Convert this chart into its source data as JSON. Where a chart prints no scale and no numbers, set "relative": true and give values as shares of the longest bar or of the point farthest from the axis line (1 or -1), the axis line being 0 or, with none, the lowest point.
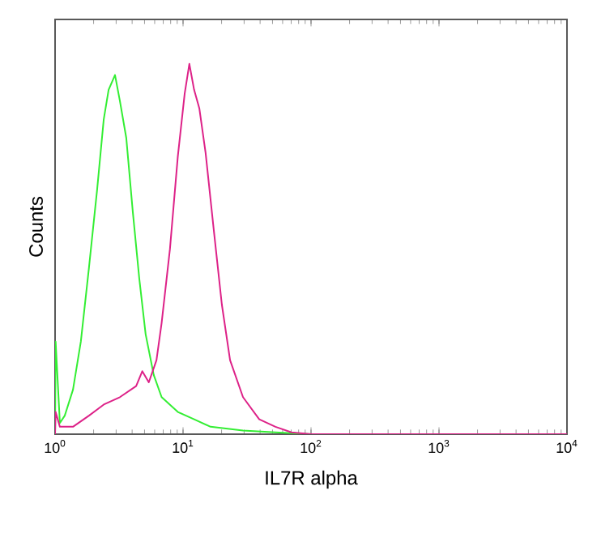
{
  "chart_data": {
    "type": "line",
    "xlabel": "IL7R alpha",
    "ylabel": "Counts",
    "log": "x",
    "relative": true,
    "xlim": [
      1,
      10000
    ],
    "xticks": [
      {
        "value": 1,
        "label": "10$^{0}$"
      },
      {
        "value": 10,
        "label": "10$^{1}$"
      },
      {
        "value": 100,
        "label": "10$^{2}$"
      },
      {
        "value": 1000,
        "label": "10$^{3}$"
      },
      {
        "value": 10000,
        "label": "10$^{4}$"
      }
    ],
    "series": [
      {
        "color": "#33ee33",
        "x": [
          1,
          1.01,
          1.09,
          1.19,
          1.38,
          1.59,
          1.84,
          2.13,
          2.4,
          2.62,
          2.94,
          3.21,
          3.6,
          4.05,
          4.55,
          5.1,
          5.9,
          6.8,
          9.1,
          12.2,
          16.4,
          29.4,
          52.7,
          100,
          10000
        ],
        "values": [
          0,
          0.25,
          0.03,
          0.05,
          0.12,
          0.25,
          0.45,
          0.66,
          0.85,
          0.93,
          0.97,
          0.9,
          0.8,
          0.6,
          0.42,
          0.27,
          0.16,
          0.1,
          0.06,
          0.04,
          0.02,
          0.01,
          0.005,
          0,
          0
        ]
      },
      {
        "color": "#dd2288",
        "x": [
          1,
          1.01,
          1.09,
          1.38,
          1.84,
          2.4,
          3.21,
          4.3,
          4.8,
          5.4,
          6.2,
          6.8,
          7.9,
          9.1,
          10.3,
          11.2,
          12.2,
          13.4,
          15,
          17.4,
          20.1,
          23.3,
          29.4,
          39.4,
          52.7,
          70.4,
          100,
          10000
        ],
        "values": [
          0,
          0.06,
          0.02,
          0.02,
          0.05,
          0.08,
          0.1,
          0.13,
          0.17,
          0.14,
          0.2,
          0.3,
          0.5,
          0.75,
          0.92,
          1,
          0.93,
          0.88,
          0.76,
          0.55,
          0.35,
          0.2,
          0.1,
          0.04,
          0.02,
          0.005,
          0,
          0
        ]
      }
    ]
  }
}
